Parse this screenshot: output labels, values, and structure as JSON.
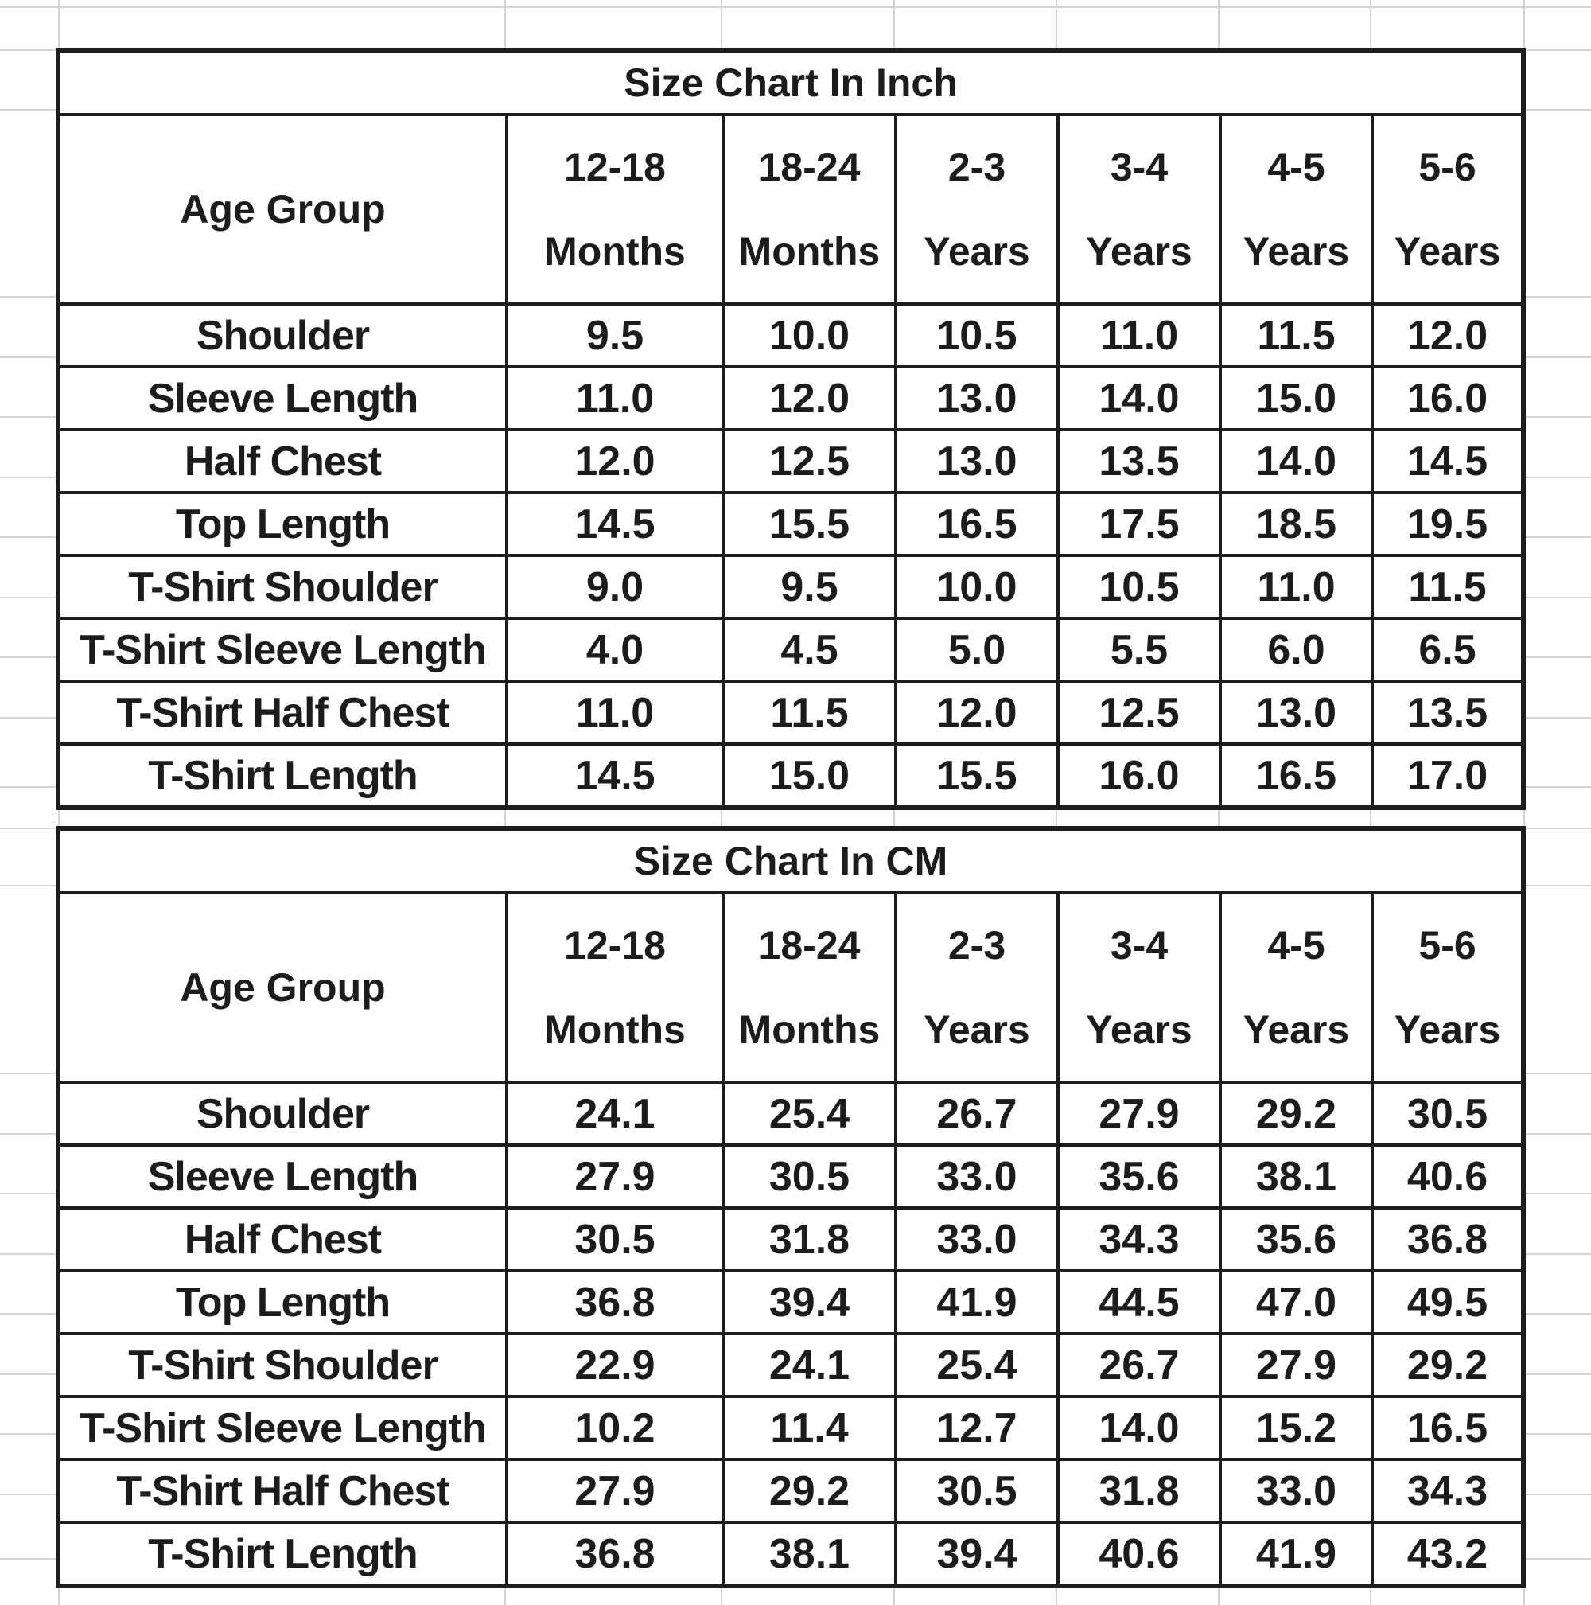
{
  "page": {
    "background_color": "#ffffff",
    "gridline_color": "#d4d4d4",
    "table_border_color": "#1d1d1d",
    "text_color": "#1c1c1c"
  },
  "tables": [
    {
      "title": "Size Chart In Inch",
      "corner_label": "Age Group",
      "columns": [
        {
          "top": "12-18",
          "bottom": "Months"
        },
        {
          "top": "18-24",
          "bottom": "Months"
        },
        {
          "top": "2-3",
          "bottom": "Years"
        },
        {
          "top": "3-4",
          "bottom": "Years"
        },
        {
          "top": "4-5",
          "bottom": "Years"
        },
        {
          "top": "5-6",
          "bottom": "Years"
        }
      ],
      "rows": [
        {
          "label": "Shoulder",
          "values": [
            "9.5",
            "10.0",
            "10.5",
            "11.0",
            "11.5",
            "12.0"
          ]
        },
        {
          "label": "Sleeve Length",
          "values": [
            "11.0",
            "12.0",
            "13.0",
            "14.0",
            "15.0",
            "16.0"
          ]
        },
        {
          "label": "Half Chest",
          "values": [
            "12.0",
            "12.5",
            "13.0",
            "13.5",
            "14.0",
            "14.5"
          ]
        },
        {
          "label": "Top Length",
          "values": [
            "14.5",
            "15.5",
            "16.5",
            "17.5",
            "18.5",
            "19.5"
          ]
        },
        {
          "label": "T-Shirt Shoulder",
          "values": [
            "9.0",
            "9.5",
            "10.0",
            "10.5",
            "11.0",
            "11.5"
          ]
        },
        {
          "label": "T-Shirt Sleeve Length",
          "values": [
            "4.0",
            "4.5",
            "5.0",
            "5.5",
            "6.0",
            "6.5"
          ]
        },
        {
          "label": "T-Shirt Half Chest",
          "values": [
            "11.0",
            "11.5",
            "12.0",
            "12.5",
            "13.0",
            "13.5"
          ]
        },
        {
          "label": "T-Shirt Length",
          "values": [
            "14.5",
            "15.0",
            "15.5",
            "16.0",
            "16.5",
            "17.0"
          ]
        }
      ]
    },
    {
      "title": "Size Chart In CM",
      "corner_label": "Age Group",
      "columns": [
        {
          "top": "12-18",
          "bottom": "Months"
        },
        {
          "top": "18-24",
          "bottom": "Months"
        },
        {
          "top": "2-3",
          "bottom": "Years"
        },
        {
          "top": "3-4",
          "bottom": "Years"
        },
        {
          "top": "4-5",
          "bottom": "Years"
        },
        {
          "top": "5-6",
          "bottom": "Years"
        }
      ],
      "rows": [
        {
          "label": "Shoulder",
          "values": [
            "24.1",
            "25.4",
            "26.7",
            "27.9",
            "29.2",
            "30.5"
          ]
        },
        {
          "label": "Sleeve Length",
          "values": [
            "27.9",
            "30.5",
            "33.0",
            "35.6",
            "38.1",
            "40.6"
          ]
        },
        {
          "label": "Half Chest",
          "values": [
            "30.5",
            "31.8",
            "33.0",
            "34.3",
            "35.6",
            "36.8"
          ]
        },
        {
          "label": "Top Length",
          "values": [
            "36.8",
            "39.4",
            "41.9",
            "44.5",
            "47.0",
            "49.5"
          ]
        },
        {
          "label": "T-Shirt Shoulder",
          "values": [
            "22.9",
            "24.1",
            "25.4",
            "26.7",
            "27.9",
            "29.2"
          ]
        },
        {
          "label": "T-Shirt Sleeve Length",
          "values": [
            "10.2",
            "11.4",
            "12.7",
            "14.0",
            "15.2",
            "16.5"
          ]
        },
        {
          "label": "T-Shirt Half Chest",
          "values": [
            "27.9",
            "29.2",
            "30.5",
            "31.8",
            "33.0",
            "34.3"
          ]
        },
        {
          "label": "T-Shirt Length",
          "values": [
            "36.8",
            "38.1",
            "39.4",
            "40.6",
            "41.9",
            "43.2"
          ]
        }
      ]
    }
  ]
}
